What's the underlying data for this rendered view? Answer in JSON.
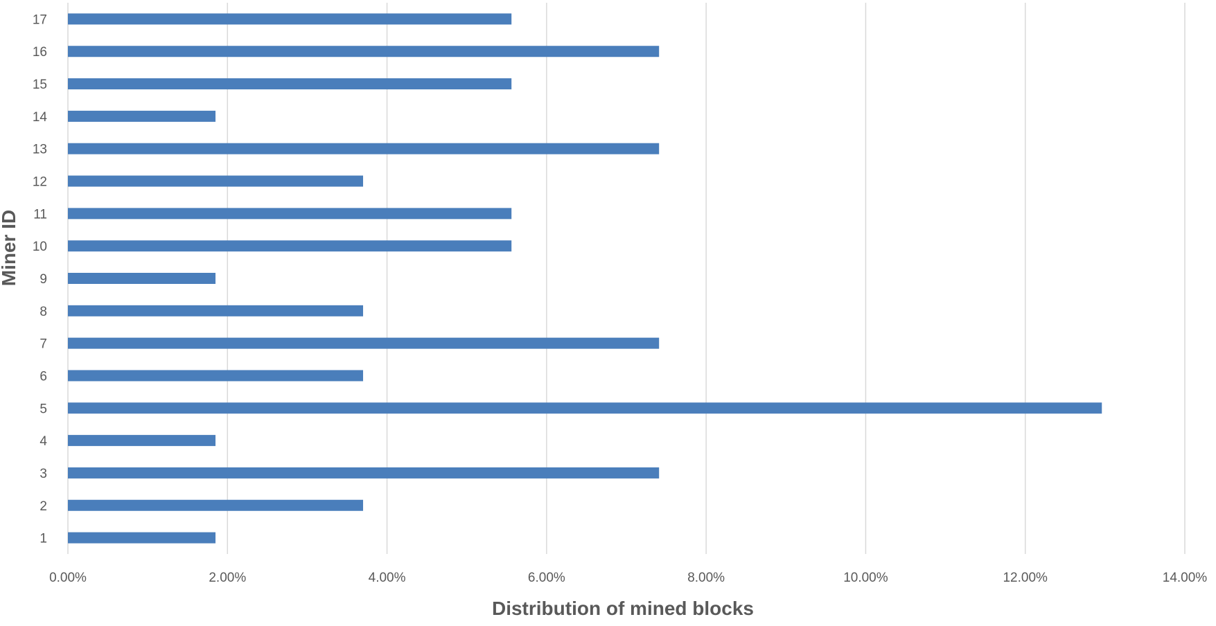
{
  "chart_data": {
    "type": "bar",
    "orientation": "horizontal",
    "xlabel": "Distribution of mined blocks",
    "ylabel": "Miner ID",
    "categories": [
      "1",
      "2",
      "3",
      "4",
      "5",
      "6",
      "7",
      "8",
      "9",
      "10",
      "11",
      "12",
      "13",
      "14",
      "15",
      "16",
      "17"
    ],
    "values": [
      1.85,
      3.7,
      7.41,
      1.85,
      12.96,
      3.7,
      7.41,
      3.7,
      1.85,
      5.56,
      5.56,
      3.7,
      7.41,
      1.85,
      5.56,
      7.41,
      5.56
    ],
    "xlim": [
      0,
      14
    ],
    "xticks": [
      0,
      2,
      4,
      6,
      8,
      10,
      12,
      14
    ],
    "xtick_labels": [
      "0.00%",
      "2.00%",
      "4.00%",
      "6.00%",
      "8.00%",
      "10.00%",
      "12.00%",
      "14.00%"
    ],
    "grid": "vertical",
    "legend": "none",
    "bar_color": "#4a7ebb"
  }
}
